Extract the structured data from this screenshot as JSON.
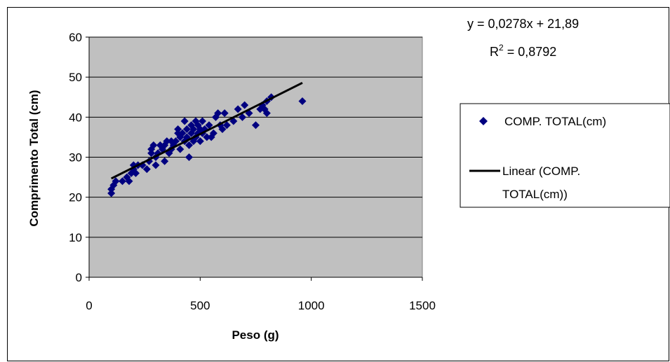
{
  "chart_data": {
    "type": "scatter",
    "xlabel": "Peso (g)",
    "ylabel": "Comprimento Total (cm)",
    "xlim": [
      0,
      1500
    ],
    "ylim": [
      0,
      60
    ],
    "x_ticks": [
      "0",
      "500",
      "1000",
      "1500"
    ],
    "y_ticks": [
      "0",
      "10",
      "20",
      "30",
      "40",
      "50",
      "60"
    ],
    "grid": true,
    "plot_background": "#c0c0c0",
    "legend_position": "right",
    "series": [
      {
        "name": "COMP.  TOTAL(cm)",
        "color": "#000080",
        "marker": "diamond",
        "points": [
          [
            100,
            21
          ],
          [
            100,
            22
          ],
          [
            110,
            23
          ],
          [
            120,
            24
          ],
          [
            150,
            24
          ],
          [
            170,
            25
          ],
          [
            180,
            24
          ],
          [
            190,
            26
          ],
          [
            200,
            27
          ],
          [
            200,
            28
          ],
          [
            210,
            26
          ],
          [
            220,
            28
          ],
          [
            240,
            28
          ],
          [
            260,
            27
          ],
          [
            270,
            29
          ],
          [
            280,
            31
          ],
          [
            280,
            32
          ],
          [
            290,
            33
          ],
          [
            300,
            28
          ],
          [
            300,
            30
          ],
          [
            310,
            31
          ],
          [
            320,
            33
          ],
          [
            330,
            32
          ],
          [
            340,
            29
          ],
          [
            340,
            33
          ],
          [
            350,
            34
          ],
          [
            360,
            31
          ],
          [
            370,
            32
          ],
          [
            370,
            34
          ],
          [
            380,
            33
          ],
          [
            390,
            34
          ],
          [
            400,
            36
          ],
          [
            400,
            37
          ],
          [
            410,
            32
          ],
          [
            410,
            35
          ],
          [
            420,
            36
          ],
          [
            430,
            34
          ],
          [
            430,
            39
          ],
          [
            440,
            35
          ],
          [
            440,
            37
          ],
          [
            450,
            30
          ],
          [
            450,
            33
          ],
          [
            460,
            36
          ],
          [
            460,
            38
          ],
          [
            470,
            34
          ],
          [
            470,
            37
          ],
          [
            480,
            35
          ],
          [
            480,
            39
          ],
          [
            490,
            36
          ],
          [
            490,
            38
          ],
          [
            500,
            34
          ],
          [
            500,
            37
          ],
          [
            510,
            36
          ],
          [
            510,
            39
          ],
          [
            520,
            37
          ],
          [
            530,
            35
          ],
          [
            540,
            38
          ],
          [
            550,
            35
          ],
          [
            560,
            36
          ],
          [
            570,
            40
          ],
          [
            580,
            41
          ],
          [
            590,
            38
          ],
          [
            600,
            37
          ],
          [
            610,
            41
          ],
          [
            620,
            38
          ],
          [
            650,
            39
          ],
          [
            670,
            42
          ],
          [
            690,
            40
          ],
          [
            700,
            43
          ],
          [
            720,
            41
          ],
          [
            750,
            38
          ],
          [
            770,
            42
          ],
          [
            780,
            43
          ],
          [
            790,
            42
          ],
          [
            800,
            41
          ],
          [
            800,
            44
          ],
          [
            820,
            45
          ],
          [
            960,
            44
          ]
        ]
      },
      {
        "name": "Linear (COMP.\nTOTAL(cm))",
        "color": "#000000",
        "type": "line",
        "x": [
          100,
          960
        ],
        "y": [
          24.67,
          48.58
        ]
      }
    ],
    "trendline": {
      "equation": "y = 0,0278x + 21,89",
      "r2_label": "R",
      "r2_value": "= 0,8792",
      "slope": 0.0278,
      "intercept": 21.89
    }
  }
}
